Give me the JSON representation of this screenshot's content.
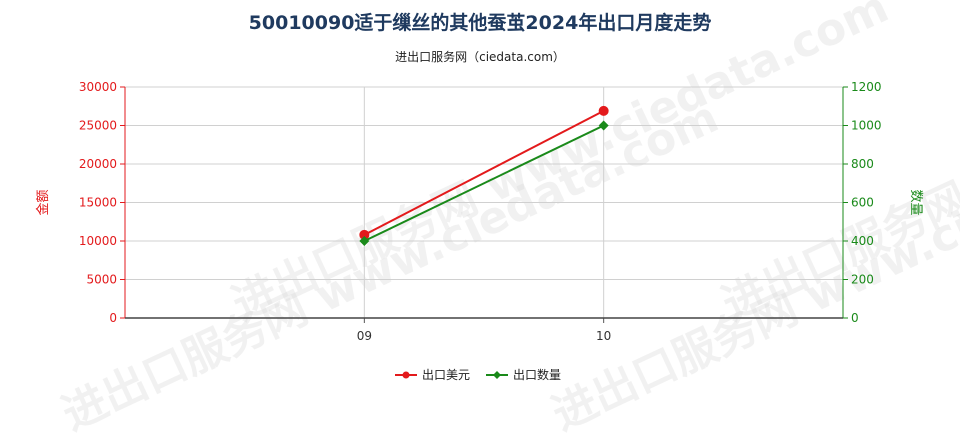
{
  "header": {
    "title": "50010090适于缫丝的其他蚕茧2024年出口月度走势",
    "subtitle": "进出口服务网（ciedata.com）",
    "watermark": "进出口服务网 www.ciedata.com"
  },
  "chart_data": {
    "type": "line",
    "x": [
      "09",
      "10"
    ],
    "y_left": {
      "label": "金额",
      "ylim": [
        0,
        30000
      ],
      "ticks": [
        0,
        5000,
        10000,
        15000,
        20000,
        25000,
        30000
      ],
      "color": "#e31a1c"
    },
    "y_right": {
      "label": "数量",
      "ylim": [
        0,
        1200
      ],
      "ticks": [
        0,
        200,
        400,
        600,
        800,
        1000,
        1200
      ],
      "color": "#1a8a1a"
    },
    "series": [
      {
        "name": "出口美元",
        "axis": "left",
        "color": "#e31a1c",
        "marker": "circle",
        "values": [
          10800,
          26900
        ]
      },
      {
        "name": "出口数量",
        "axis": "right",
        "color": "#1a8a1a",
        "marker": "diamond",
        "values": [
          400,
          1000
        ]
      }
    ],
    "grid": true,
    "legend_position": "bottom-center"
  }
}
